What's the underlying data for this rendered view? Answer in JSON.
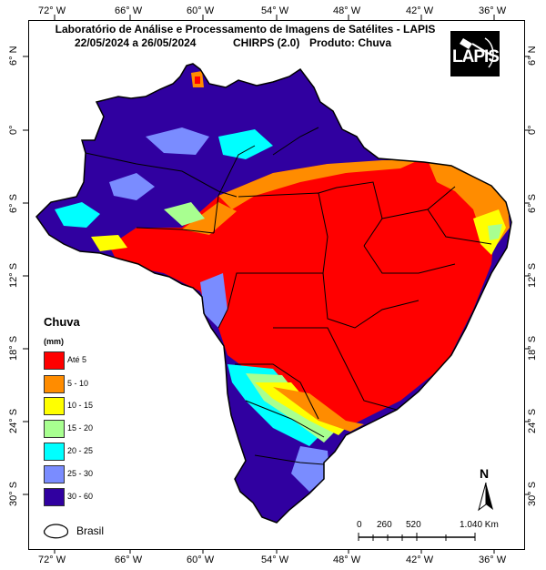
{
  "header": {
    "title": "Laboratório de Análise e Processamento de Imagens de Satélites - LAPIS",
    "date_range": "22/05/2024  a 26/05/2024",
    "dataset": "CHIRPS (2.0)",
    "product": "Produto: Chuva"
  },
  "logo": {
    "text": "LAPIS",
    "icon": "satellite-icon"
  },
  "axes": {
    "longitudes": [
      "72° W",
      "66° W",
      "60° W",
      "54° W",
      "48° W",
      "42° W",
      "36° W"
    ],
    "latitudes": [
      "6° N",
      "0°",
      "6° S",
      "12° S",
      "18° S",
      "24° S",
      "30° S"
    ]
  },
  "legend": {
    "title": "Chuva",
    "unit": "(mm)",
    "items": [
      {
        "label": "Até 5",
        "color": "#ff0000"
      },
      {
        "label": "5 - 10",
        "color": "#ff8c00"
      },
      {
        "label": "10 - 15",
        "color": "#ffff00"
      },
      {
        "label": "15 - 20",
        "color": "#a8ff90"
      },
      {
        "label": "20 - 25",
        "color": "#00ffff"
      },
      {
        "label": "25 - 30",
        "color": "#7a8cff"
      },
      {
        "label": "30 - 60",
        "color": "#3000a0"
      }
    ],
    "outline_label": "Brasil"
  },
  "scale_bar": {
    "labels": [
      "0",
      "260",
      "520",
      "1.040 Km"
    ]
  },
  "north_arrow": {
    "label": "N",
    "icon": "north-arrow-icon"
  }
}
